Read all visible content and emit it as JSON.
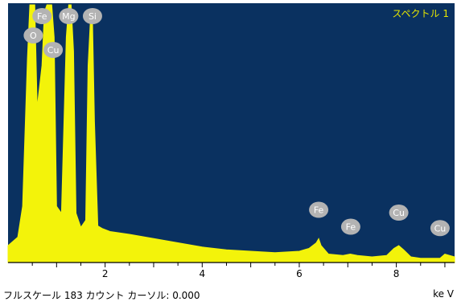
{
  "window": {
    "spectrum_title": "スペクトル 1",
    "status_left": "フルスケール 183 カウント カーソル: 0.000",
    "unit_label": "ke V"
  },
  "colors": {
    "background": "#0a3160",
    "spectrum": "#f3f30a",
    "peak_label_fill": "#b3b3b3",
    "peak_label_text": "#ffffff"
  },
  "chart_data": {
    "type": "area",
    "title": "スペクトル 1",
    "xlabel": "ke V",
    "ylabel": "",
    "xlim": [
      0.0,
      9.2
    ],
    "ylim": [
      0,
      183
    ],
    "x_ticks": [
      2,
      4,
      6,
      8
    ],
    "grid": false,
    "x": [
      0.0,
      0.2,
      0.3,
      0.4,
      0.45,
      0.5,
      0.52,
      0.55,
      0.6,
      0.7,
      0.75,
      0.8,
      0.85,
      0.9,
      0.95,
      1.0,
      1.1,
      1.2,
      1.25,
      1.3,
      1.35,
      1.4,
      1.5,
      1.6,
      1.65,
      1.7,
      1.74,
      1.78,
      1.85,
      1.95,
      2.1,
      2.5,
      3.0,
      3.5,
      4.0,
      4.5,
      5.0,
      5.5,
      6.0,
      6.2,
      6.35,
      6.4,
      6.45,
      6.6,
      6.9,
      7.05,
      7.2,
      7.5,
      7.8,
      7.95,
      8.05,
      8.15,
      8.3,
      8.5,
      8.9,
      9.0,
      9.2
    ],
    "y": [
      12,
      18,
      40,
      145,
      183,
      183,
      183,
      183,
      110,
      140,
      178,
      183,
      183,
      183,
      160,
      40,
      35,
      160,
      183,
      183,
      150,
      35,
      25,
      30,
      140,
      175,
      170,
      100,
      26,
      24,
      22,
      20,
      17,
      14,
      11,
      9,
      8,
      7,
      8,
      10,
      14,
      17,
      12,
      6,
      5,
      6,
      5,
      4,
      5,
      10,
      12,
      9,
      4,
      3,
      3,
      6,
      4
    ],
    "peak_labels": [
      {
        "label": "O",
        "energy": 0.52,
        "counts": 165
      },
      {
        "label": "Fe",
        "energy": 0.7,
        "counts": 183
      },
      {
        "label": "Cu",
        "energy": 0.93,
        "counts": 154
      },
      {
        "label": "Mg",
        "energy": 1.25,
        "counts": 183
      },
      {
        "label": "Si",
        "energy": 1.74,
        "counts": 183
      },
      {
        "label": "Fe",
        "energy": 6.4,
        "counts": 26
      },
      {
        "label": "Fe",
        "energy": 7.06,
        "counts": 14
      },
      {
        "label": "Cu",
        "energy": 8.05,
        "counts": 24
      },
      {
        "label": "Cu",
        "energy": 8.9,
        "counts": 13
      }
    ]
  }
}
